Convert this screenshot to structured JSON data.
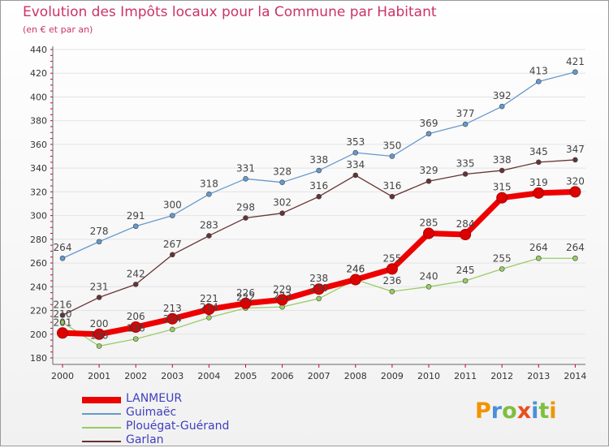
{
  "title": "Evolution des Impôts locaux pour la Commune par Habitant",
  "subtitle": "(en € et par an)",
  "logo_text": "Proxiti",
  "chart_data": {
    "type": "line",
    "title": "Evolution des Impôts locaux pour la Commune par Habitant",
    "subtitle": "(en € et par an)",
    "x": [
      "2000",
      "2001",
      "2002",
      "2003",
      "2004",
      "2005",
      "2006",
      "2007",
      "2008",
      "2009",
      "2010",
      "2011",
      "2012",
      "2013",
      "2014"
    ],
    "ylim": [
      180,
      440
    ],
    "yticks": [
      180,
      200,
      220,
      240,
      260,
      280,
      300,
      320,
      340,
      360,
      380,
      400,
      420,
      440
    ],
    "grid": true,
    "legend_position": "bottom-left",
    "series": [
      {
        "name": "LANMEUR",
        "color": "#ee0000",
        "values": [
          201,
          200,
          206,
          213,
          221,
          226,
          229,
          238,
          246,
          255,
          285,
          284,
          315,
          319,
          320
        ]
      },
      {
        "name": "Guimaëc",
        "color": "#6699cc",
        "values": [
          264,
          278,
          291,
          300,
          318,
          331,
          328,
          338,
          353,
          350,
          369,
          377,
          392,
          413,
          421
        ]
      },
      {
        "name": "Plouégat-Guérand",
        "color": "#99cc66",
        "values": [
          210,
          190,
          196,
          204,
          214,
          222,
          223,
          230,
          246,
          236,
          240,
          245,
          255,
          264,
          264
        ]
      },
      {
        "name": "Garlan",
        "color": "#663333",
        "values": [
          216,
          231,
          242,
          267,
          283,
          298,
          302,
          316,
          334,
          316,
          329,
          335,
          338,
          345,
          347
        ]
      }
    ]
  }
}
